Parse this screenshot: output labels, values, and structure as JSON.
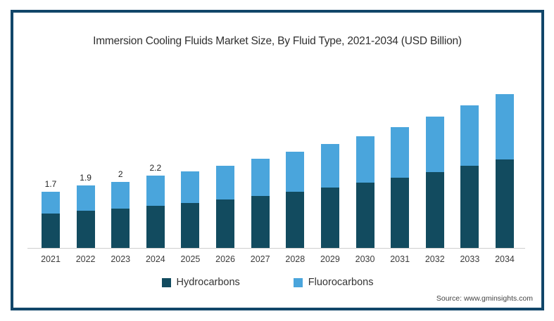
{
  "source": "Source: www.gminsights.com",
  "colors": {
    "card_border": "#114669",
    "axis_line": "#cfcfcf",
    "hydrocarbons": "#124B5F",
    "fluorocarbons": "#4AA5DC",
    "title_text": "#2f2f2f"
  },
  "chart_data": {
    "type": "bar",
    "stacked": true,
    "title": "Immersion Cooling Fluids Market Size, By Fluid Type, 2021-2034 (USD Billion)",
    "unit": "USD Billion",
    "grid": false,
    "legend_position": "bottom",
    "xlabel": "",
    "ylabel": "",
    "ylim": [
      0,
      5
    ],
    "categories": [
      "2021",
      "2022",
      "2023",
      "2024",
      "2025",
      "2026",
      "2027",
      "2028",
      "2029",
      "2030",
      "2031",
      "2032",
      "2033",
      "2034"
    ],
    "series": [
      {
        "name": "Hydrocarbons",
        "color": "#124B5F",
        "values": [
          1.04,
          1.12,
          1.19,
          1.28,
          1.37,
          1.47,
          1.58,
          1.71,
          1.83,
          1.97,
          2.12,
          2.29,
          2.48,
          2.68
        ]
      },
      {
        "name": "Fluorocarbons",
        "color": "#4AA5DC",
        "values": [
          0.66,
          0.78,
          0.81,
          0.92,
          0.95,
          1.02,
          1.12,
          1.2,
          1.31,
          1.41,
          1.55,
          1.68,
          1.83,
          1.98
        ]
      }
    ],
    "totals": [
      1.7,
      1.9,
      2.0,
      2.2,
      2.32,
      2.49,
      2.7,
      2.91,
      3.14,
      3.38,
      3.67,
      3.97,
      4.31,
      4.66
    ],
    "value_labels": [
      "1.7",
      "1.9",
      "2",
      "2.2"
    ]
  }
}
